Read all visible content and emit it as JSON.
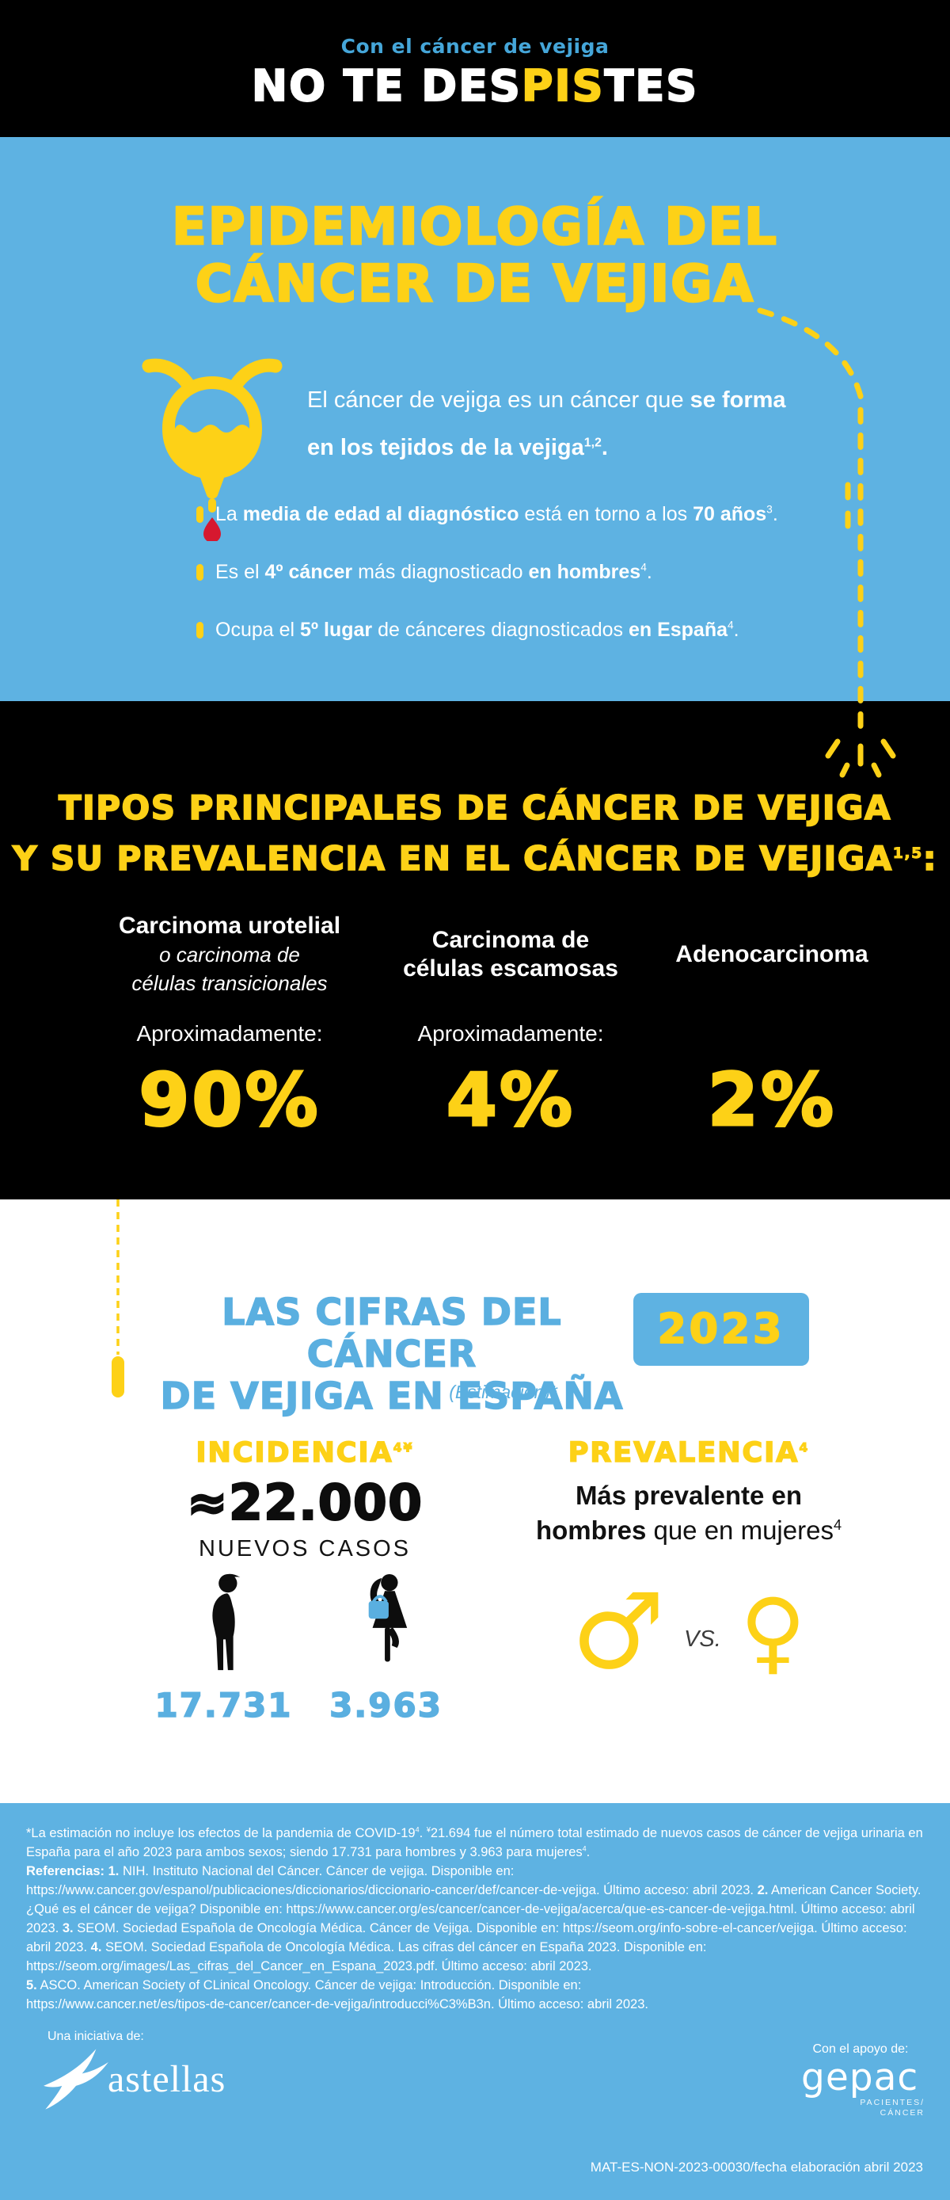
{
  "colors": {
    "background_blue": "#5eb2e2",
    "accent_yellow": "#fdd117",
    "black": "#000000",
    "white": "#ffffff",
    "drop_red": "#d6182f",
    "header_kicker_blue": "#45a6d9"
  },
  "header": {
    "kicker": "Con el cáncer de vejiga",
    "title_part1": "NO TE DES",
    "title_part2": "PIS",
    "title_part3": "TES"
  },
  "epidemiology": {
    "title_line1": "EPIDEMIOLOGÍA DEL",
    "title_line2": "CÁNCER DE VEJIGA",
    "intro_html": "El cáncer de vejiga es un cáncer que <b>se forma<br>en los tejidos de la vejiga<sup>1,2</sup>.</b>",
    "bullets": [
      "La <b>media de edad al diagnóstico</b> está en torno a los <b>70 años</b><sup>3</sup>.",
      "Es el <b>4º cáncer</b> más diagnosticado <b>en hombres</b><sup>4</sup>.",
      "Ocupa el <b>5º lugar</b> de cánceres diagnosticados <b>en España</b><sup>4</sup>."
    ]
  },
  "types": {
    "title_line1": "TIPOS PRINCIPALES DE CÁNCER DE VEJIGA",
    "title_line2_html": "Y SU PREVALENCIA EN EL CÁNCER DE VEJIGA<sup>1,5</sup>:",
    "columns": [
      {
        "name_html": "<b>Carcinoma urotelial</b><br><i>o carcinoma de<br>células transicionales</i>",
        "approx_label": "Aproximadamente:",
        "value": "90%"
      },
      {
        "name_html": "<b>Carcinoma de<br>células escamosas</b>",
        "approx_label": "Aproximadamente:",
        "value": "4%"
      },
      {
        "name_html": "<b>Adenocarcinoma</b>",
        "approx_label": "",
        "value": "2%"
      }
    ]
  },
  "figures": {
    "title_line1": "LAS CIFRAS DEL CÁNCER",
    "title_line2": "DE VEJIGA EN ESPAÑA",
    "badge": "2023",
    "estimation_note": "(Estimación)*",
    "incidence": {
      "title_html": "INCIDENCIA<sup>4¥</sup>",
      "value": "≈22.000",
      "label": "NUEVOS CASOS",
      "men_value": "17.731",
      "women_value": "3.963"
    },
    "prevalence": {
      "title_html": "PREVALENCIA<sup>4</sup>",
      "statement_html": "<b>Más prevalente en<br>hombres</b> que en mujeres<sup>4</sup>",
      "vs_label": "VS."
    }
  },
  "footer": {
    "references_html": "*La estimación no incluye los efectos de la pandemia de COVID-19<sup>4</sup>. <sup>¥</sup>21.694 fue el número total estimado de nuevos casos de cáncer de vejiga urinaria en España para el año 2023 para ambos sexos; siendo 17.731 para hombres y 3.963 para mujeres<sup>4</sup>.<br><b>Referencias: 1.</b> NIH. Instituto Nacional del Cáncer. Cáncer de vejiga. Disponible en:<br>https://www.cancer.gov/espanol/publicaciones/diccionarios/diccionario-cancer/def/cancer-de-vejiga. Último acceso: abril 2023. <b>2.</b> American Cancer Society. ¿Qué es el cáncer de vejiga? Disponible en: https://www.cancer.org/es/cancer/cancer-de-vejiga/acerca/que-es-cancer-de-vejiga.html. Último acceso: abril 2023. <b>3.</b> SEOM. Sociedad Española de Oncología Médica. Cáncer de Vejiga. Disponible en: https://seom.org/info-sobre-el-cancer/vejiga. Último acceso: abril 2023. <b>4.</b> SEOM. Sociedad Española de Oncología Médica. Las cifras del cáncer en España 2023. Disponible en: https://seom.org/images/Las_cifras_del_Cancer_en_Espana_2023.pdf. Último acceso: abril 2023.<br><b>5.</b> ASCO. American Society of CLinical Oncology. Cáncer de vejiga: Introducción. Disponible en:<br>https://www.cancer.net/es/tipos-de-cancer/cancer-de-vejiga/introducci%C3%B3n. Último acceso: abril 2023.",
    "initiative_label": "Una iniciativa de:",
    "initiative_brand": "astellas",
    "support_label": "Con el apoyo de:",
    "support_brand": "gepac",
    "support_brand_sub1": "PACIENTES/",
    "support_brand_sub2": "CÁNCER",
    "code": "MAT-ES-NON-2023-00030/fecha elaboración abril 2023"
  }
}
